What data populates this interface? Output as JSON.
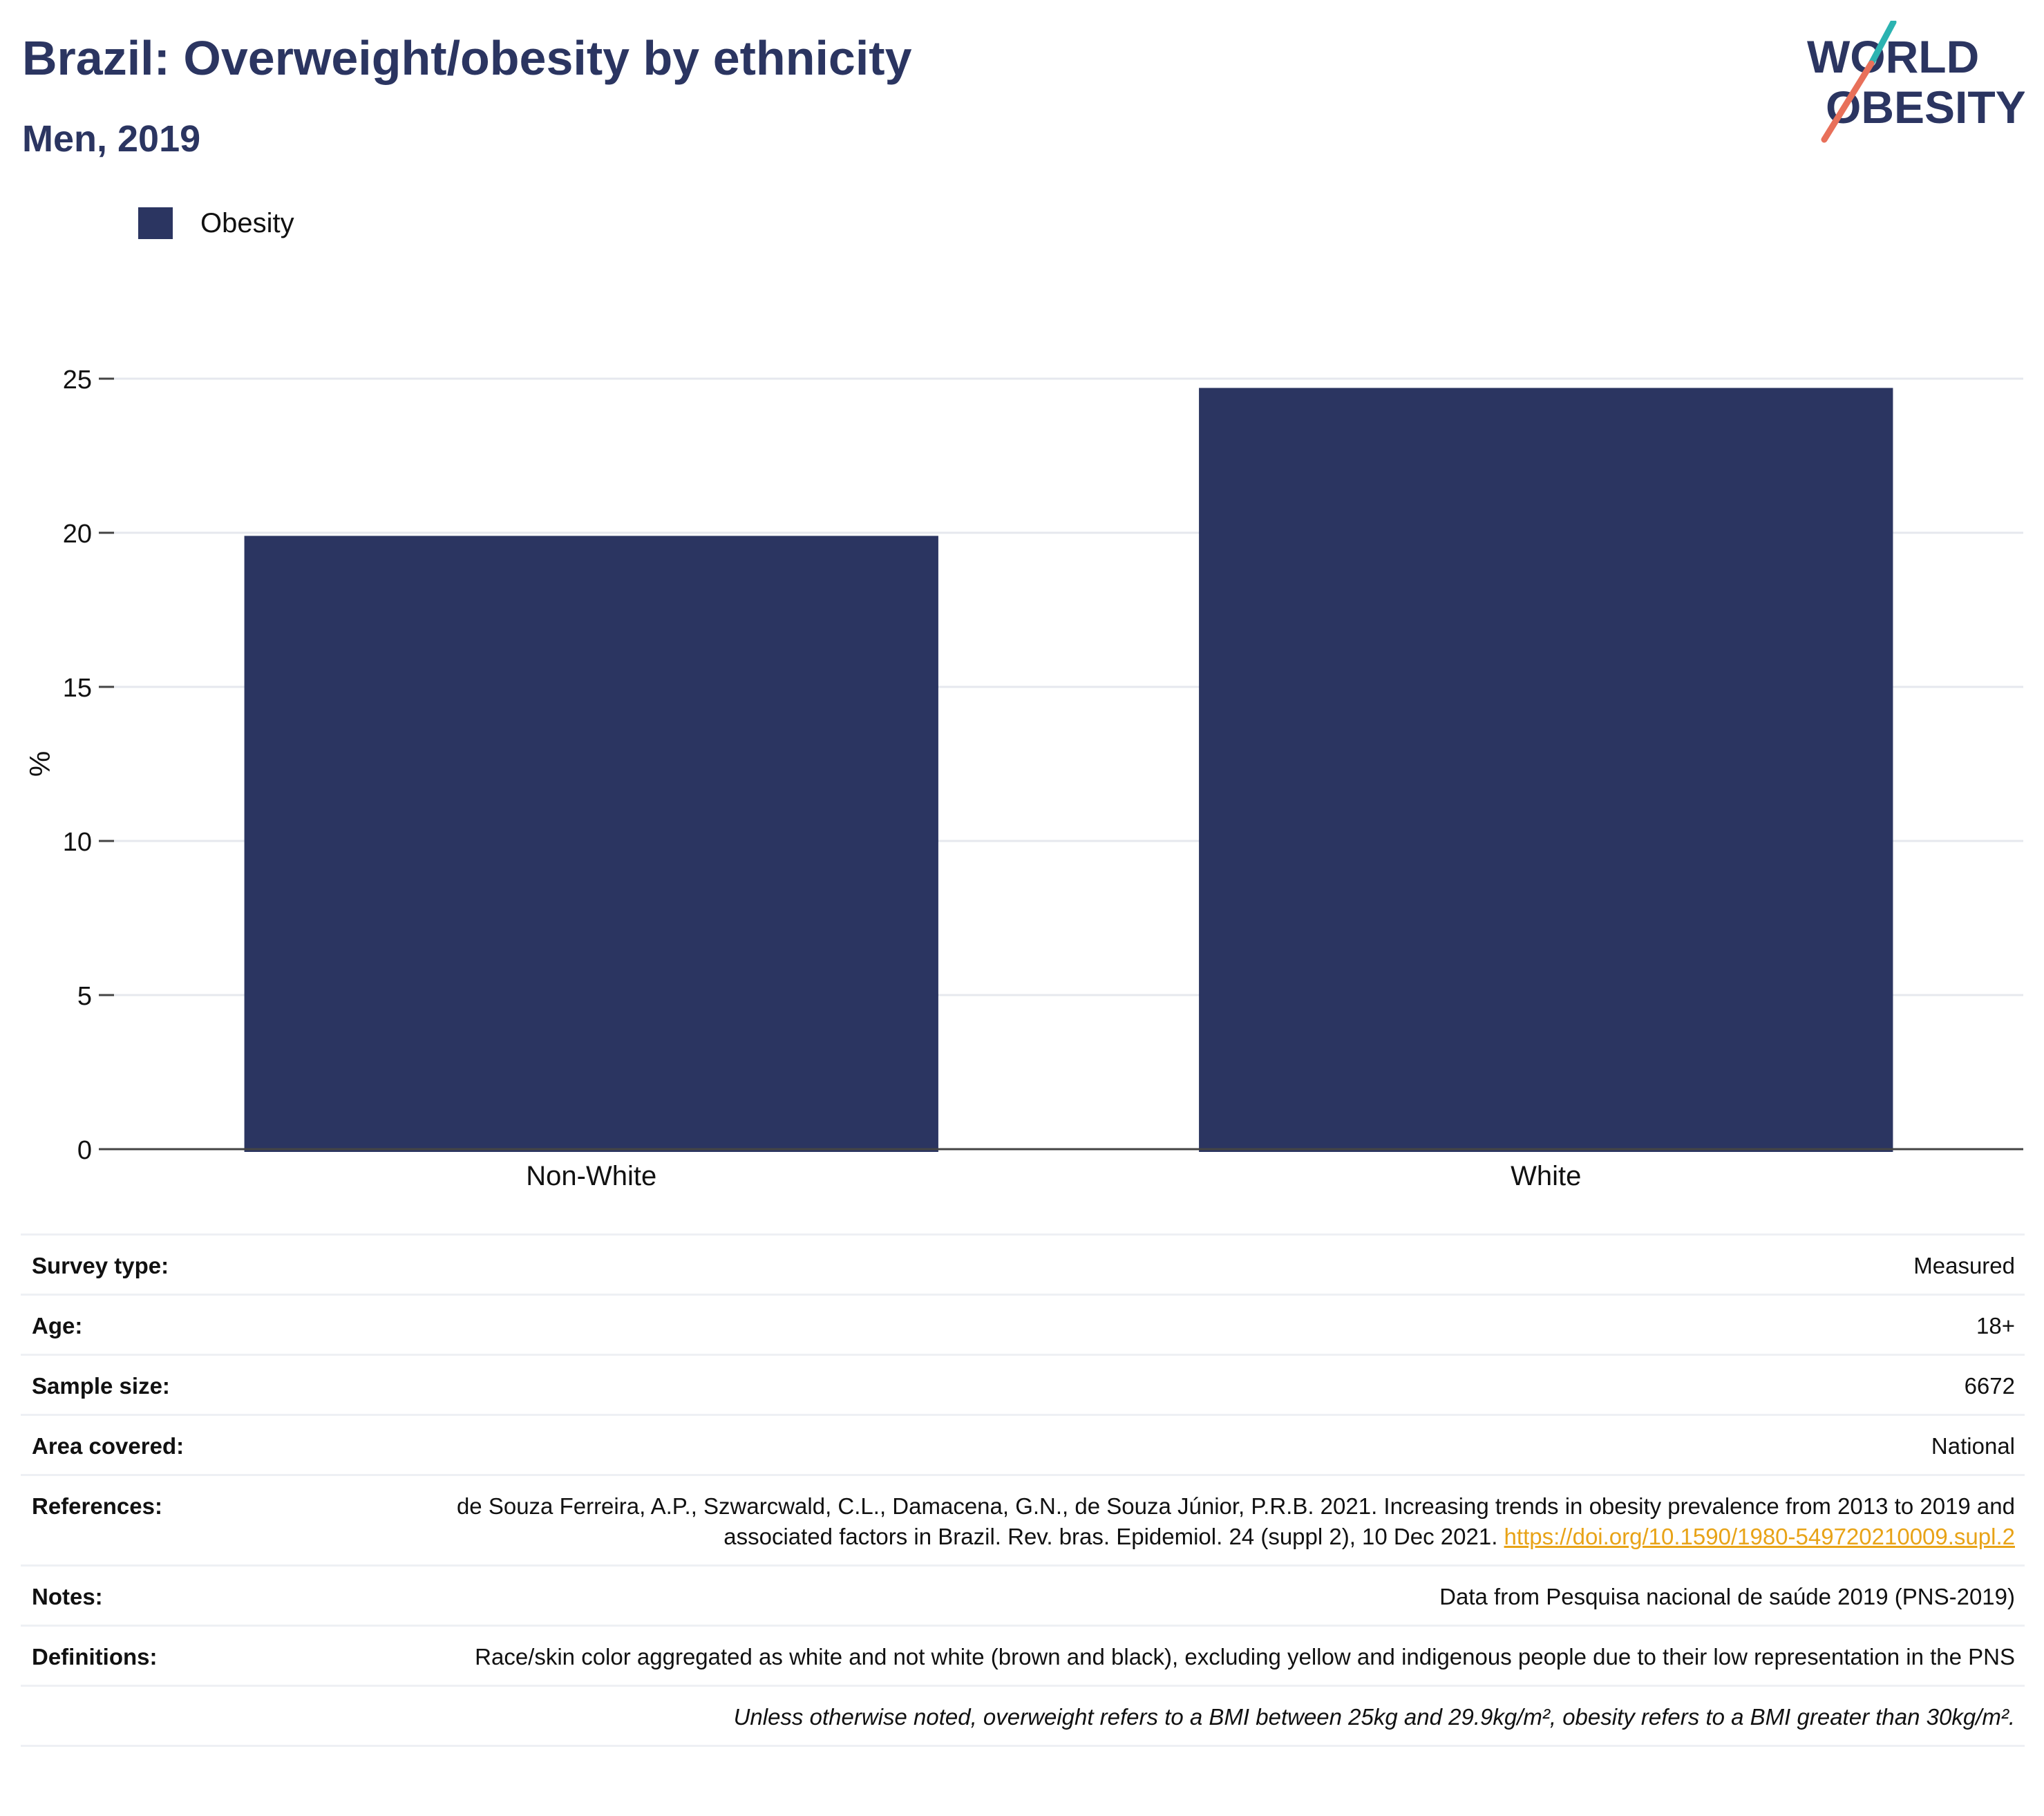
{
  "header": {
    "title": "Brazil: Overweight/obesity by ethnicity",
    "subtitle": "Men, 2019",
    "logo_line1": "WORLD",
    "logo_line2": "OBESITY"
  },
  "legend": {
    "label": "Obesity",
    "color": "#2b3561"
  },
  "chart_data": {
    "type": "bar",
    "categories": [
      "Non-White",
      "White"
    ],
    "series": [
      {
        "name": "Obesity",
        "values": [
          19.9,
          24.7
        ],
        "color": "#2b3561"
      }
    ],
    "title": "Brazil: Overweight/obesity by ethnicity",
    "subtitle": "Men, 2019",
    "xlabel": "",
    "ylabel": "%",
    "ylim": [
      0,
      25
    ],
    "yticks": [
      0,
      5,
      10,
      15,
      20,
      25
    ],
    "grid": true,
    "legend_position": "top-left"
  },
  "info": {
    "survey_type_label": "Survey type:",
    "survey_type_value": "Measured",
    "age_label": "Age:",
    "age_value": "18+",
    "sample_label": "Sample size:",
    "sample_value": "6672",
    "area_label": "Area covered:",
    "area_value": "National",
    "references_label": "References:",
    "references_text": "de Souza Ferreira, A.P., Szwarcwald, C.L., Damacena, G.N., de Souza Júnior, P.R.B. 2021. Increasing trends in obesity prevalence from 2013 to 2019 and associated factors in Brazil. Rev. bras. Epidemiol. 24 (suppl 2), 10 Dec 2021.",
    "references_link": "https://doi.org/10.1590/1980-549720210009.supl.2",
    "notes_label": "Notes:",
    "notes_value": "Data from Pesquisa nacional de saúde 2019 (PNS-2019)",
    "definitions_label": "Definitions:",
    "definitions_value": "Race/skin color aggregated as white and not white (brown and black), excluding yellow and indigenous people due to their low representation in the PNS",
    "footnote": "Unless otherwise noted, overweight refers to a BMI between 25kg and 29.9kg/m², obesity refers to a BMI greater than 30kg/m²."
  }
}
